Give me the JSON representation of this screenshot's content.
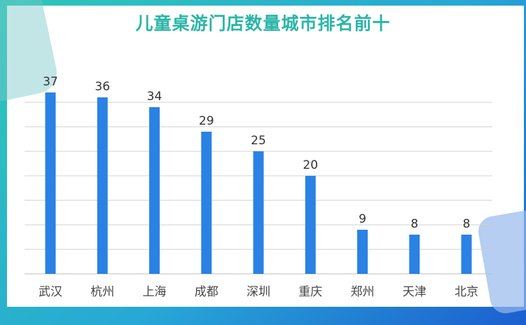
{
  "chart_data": {
    "type": "bar",
    "title": "儿童桌游门店数量城市排名前十",
    "categories": [
      "武汉",
      "杭州",
      "上海",
      "成都",
      "深圳",
      "重庆",
      "郑州",
      "天津",
      "北京"
    ],
    "values": [
      37,
      36,
      34,
      29,
      25,
      20,
      9,
      8,
      8
    ],
    "ylim": [
      0,
      40
    ],
    "grid": true,
    "data_labels": true,
    "colors": {
      "bar": "#2a82e4",
      "title": "#2bb5a7",
      "grid": "#d0d0d0"
    }
  }
}
